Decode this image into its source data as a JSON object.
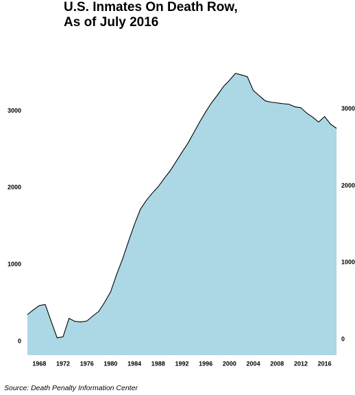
{
  "chart_data": {
    "type": "area",
    "title": "U.S. Inmates On Death Row, As of July 2016",
    "source": "Source: Death Penalty Information Center",
    "x": [
      1966,
      1967,
      1968,
      1969,
      1970,
      1971,
      1972,
      1973,
      1974,
      1975,
      1976,
      1977,
      1978,
      1979,
      1980,
      1981,
      1982,
      1983,
      1984,
      1985,
      1986,
      1987,
      1988,
      1989,
      1990,
      1991,
      1992,
      1993,
      1994,
      1995,
      1996,
      1997,
      1998,
      1999,
      2000,
      2001,
      2002,
      2003,
      2004,
      2005,
      2006,
      2007,
      2008,
      2009,
      2010,
      2011,
      2012,
      2013,
      2014,
      2015,
      2016,
      2017,
      2018
    ],
    "series": [
      {
        "name": "Inmates on death row",
        "color": "#acd8e6",
        "values": [
          349,
          410,
          466,
          480,
          260,
          45,
          60,
          300,
          260,
          252,
          265,
          330,
          390,
          510,
          645,
          870,
          1070,
          1300,
          1522,
          1720,
          1835,
          1930,
          2014,
          2120,
          2220,
          2340,
          2462,
          2580,
          2720,
          2860,
          2990,
          3110,
          3210,
          3320,
          3400,
          3491,
          3470,
          3447,
          3268,
          3200,
          3133,
          3115,
          3106,
          3095,
          3088,
          3055,
          3043,
          2972,
          2920,
          2856,
          2928,
          2829,
          2775
        ]
      }
    ],
    "xlim": [
      1966,
      2018
    ],
    "xticks": [
      1968,
      1972,
      1976,
      1980,
      1984,
      1988,
      1992,
      1996,
      2000,
      2004,
      2008,
      2012,
      2016
    ],
    "ylim": [
      -180,
      3560
    ],
    "yticks": [
      0,
      1000,
      2000,
      3000
    ],
    "y2lim": [
      -206,
      3533
    ],
    "y2ticks": [
      0,
      1000,
      2000,
      3000
    ],
    "grid": false
  }
}
